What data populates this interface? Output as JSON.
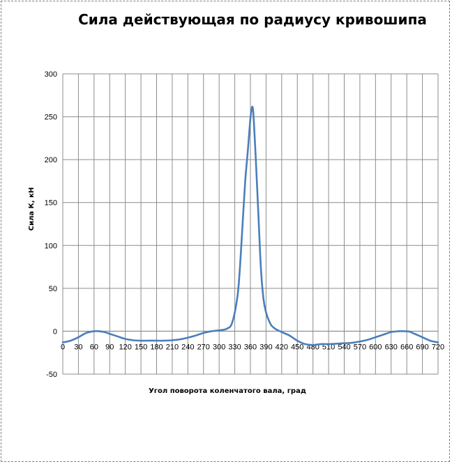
{
  "chart_data": {
    "type": "line",
    "title": "Сила действующая по радиусу кривошипа",
    "xlabel": "Угол поворота коленчатого вала, град",
    "ylabel": "Сила К, кН",
    "xlim": [
      0,
      720
    ],
    "ylim": [
      -50,
      300
    ],
    "xticks": [
      0,
      30,
      60,
      90,
      120,
      150,
      180,
      210,
      240,
      270,
      300,
      330,
      360,
      390,
      420,
      450,
      480,
      510,
      540,
      570,
      600,
      630,
      660,
      690,
      720
    ],
    "yticks": [
      -50,
      0,
      50,
      100,
      150,
      200,
      250,
      300
    ],
    "grid": true,
    "legend": "none",
    "series": [
      {
        "color": "#4a7ebb",
        "x": [
          0,
          15,
          30,
          45,
          60,
          70,
          80,
          90,
          105,
          120,
          135,
          150,
          165,
          180,
          195,
          210,
          225,
          240,
          255,
          270,
          285,
          300,
          315,
          325,
          335,
          340,
          345,
          350,
          355,
          360,
          363,
          365,
          367,
          370,
          375,
          380,
          385,
          390,
          395,
          400,
          405,
          410,
          420,
          435,
          450,
          465,
          480,
          495,
          510,
          525,
          540,
          555,
          570,
          585,
          600,
          615,
          630,
          645,
          655,
          665,
          675,
          690,
          705,
          720
        ],
        "y": [
          -13,
          -11,
          -7,
          -2,
          0,
          0,
          -1,
          -3,
          -6,
          -9,
          -10.5,
          -11,
          -11,
          -11,
          -11,
          -10.5,
          -9.5,
          -7.5,
          -5,
          -2,
          0,
          1,
          3,
          10,
          40,
          75,
          125,
          175,
          210,
          248,
          261,
          258,
          240,
          205,
          140,
          75,
          38,
          22,
          13,
          7,
          4,
          2,
          -1,
          -5,
          -11,
          -15,
          -16,
          -15,
          -15,
          -14.5,
          -14,
          -13.5,
          -12,
          -10,
          -7,
          -4,
          -1,
          0,
          0,
          -0.5,
          -3,
          -7,
          -11,
          -13
        ]
      }
    ]
  }
}
